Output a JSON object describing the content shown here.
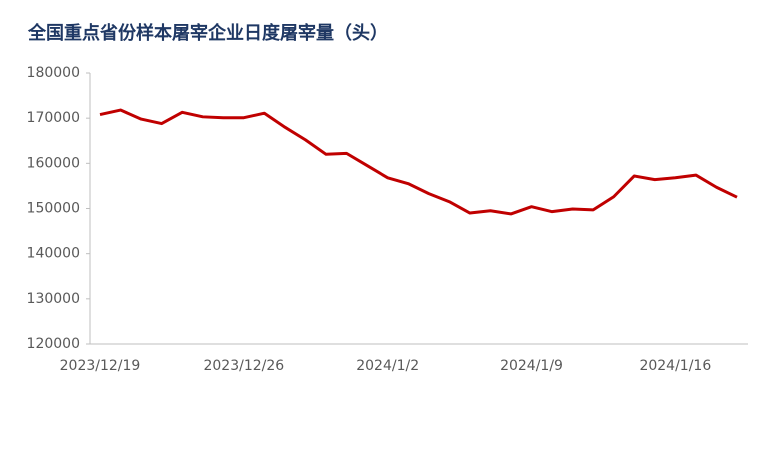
{
  "chart_data": {
    "type": "line",
    "title": "全国重点省份样本屠宰企业日度屠宰量（头）",
    "categories": [
      "2023/12/19",
      null,
      null,
      null,
      null,
      null,
      null,
      "2023/12/26",
      null,
      null,
      null,
      null,
      null,
      null,
      "2024/1/2",
      null,
      null,
      null,
      null,
      null,
      null,
      "2024/1/9",
      null,
      null,
      null,
      null,
      null,
      null,
      "2024/1/16",
      null,
      null,
      null
    ],
    "series": [
      {
        "name": "日度屠宰量",
        "color": "#c00000",
        "values": [
          170800,
          171800,
          169800,
          168800,
          171300,
          170300,
          170100,
          170100,
          171100,
          168000,
          165200,
          162000,
          162200,
          159500,
          156800,
          155500,
          153300,
          151500,
          149000,
          149500,
          148800,
          150400,
          149300,
          149900,
          149700,
          152600,
          157200,
          156400,
          156800,
          157400,
          154700,
          152500
        ]
      }
    ],
    "ylim": [
      120000,
      180000
    ],
    "yticks": [
      120000,
      130000,
      140000,
      150000,
      160000,
      170000,
      180000
    ],
    "grid": false,
    "legend": false
  }
}
